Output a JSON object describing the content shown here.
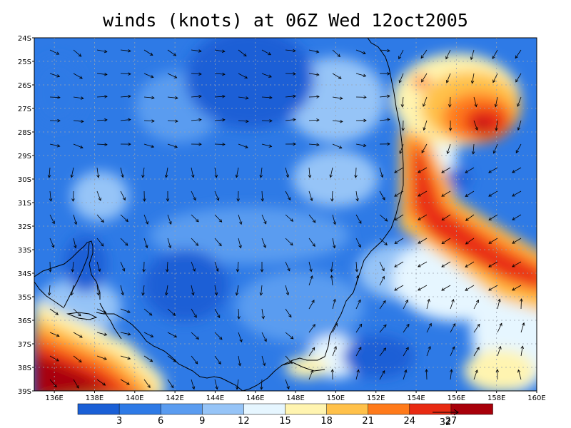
{
  "title": "winds (knots) at 06Z Wed 12oct2005",
  "map": {
    "lat_labels": [
      "24S",
      "25S",
      "26S",
      "27S",
      "28S",
      "29S",
      "30S",
      "31S",
      "32S",
      "33S",
      "34S",
      "35S",
      "36S",
      "37S",
      "38S",
      "39S"
    ],
    "lon_labels": [
      "136E",
      "138E",
      "140E",
      "142E",
      "144E",
      "146E",
      "148E",
      "150E",
      "152E",
      "154E",
      "156E",
      "158E",
      "160E"
    ],
    "lat_range": [
      -39,
      -24
    ],
    "lon_range": [
      135,
      160
    ],
    "grid": "dashed",
    "arrows": "wind vectors"
  },
  "colorbar": {
    "labels": [
      "3",
      "6",
      "9",
      "12",
      "15",
      "18",
      "21",
      "24",
      "27"
    ],
    "colors": [
      "#1a5fd6",
      "#2e7ae6",
      "#5a9cf0",
      "#96c4f7",
      "#e6f6ff",
      "#fff4b0",
      "#ffc14a",
      "#ff7a1a",
      "#e82a12",
      "#a8000a"
    ],
    "reference_vector": "32"
  },
  "colors": {
    "land_outline": "#000000",
    "grid": "#9aa4b0"
  }
}
